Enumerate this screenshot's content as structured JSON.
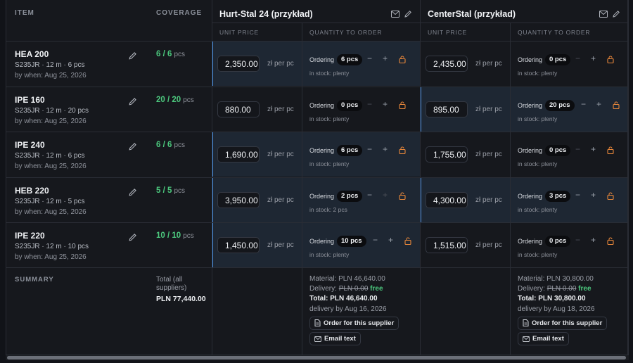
{
  "header": {
    "item": "ITEM",
    "coverage": "COVERAGE",
    "summary": "SUMMARY"
  },
  "suppliers": [
    {
      "name": "Hurt-Stal 24 (przykład)",
      "unit_price_header": "UNIT PRICE",
      "qty_header": "QUANTITY TO ORDER",
      "rows": [
        {
          "price": "2,350.00",
          "unit": "zł per pc",
          "ordering": "Ordering",
          "qty": "6 pcs",
          "stock": "in stock: plenty",
          "highlight": true
        },
        {
          "price": "880.00",
          "unit": "zł per pc",
          "ordering": "Ordering",
          "qty": "0 pcs",
          "stock": "in stock: plenty",
          "highlight": false
        },
        {
          "price": "1,690.00",
          "unit": "zł per pc",
          "ordering": "Ordering",
          "qty": "6 pcs",
          "stock": "in stock: plenty",
          "highlight": true
        },
        {
          "price": "3,950.00",
          "unit": "zł per pc",
          "ordering": "Ordering",
          "qty": "2 pcs",
          "stock": "in stock: 2 pcs",
          "highlight": true
        },
        {
          "price": "1,450.00",
          "unit": "zł per pc",
          "ordering": "Ordering",
          "qty": "10 pcs",
          "stock": "in stock: plenty",
          "highlight": true
        }
      ],
      "summary": {
        "material": "Material: PLN 46,640.00",
        "delivery_label": "Delivery:",
        "delivery_old": "PLN 0.00",
        "delivery_free": "free",
        "total": "Total: PLN 46,640.00",
        "delivery_by": "delivery by Aug 16, 2026",
        "order_btn": "Order for this supplier",
        "email_btn": "Email text"
      }
    },
    {
      "name": "CenterStal (przykład)",
      "unit_price_header": "UNIT PRICE",
      "qty_header": "QUANTITY TO ORDER",
      "rows": [
        {
          "price": "2,435.00",
          "unit": "zł per pc",
          "ordering": "Ordering",
          "qty": "0 pcs",
          "stock": "in stock: plenty",
          "highlight": false
        },
        {
          "price": "895.00",
          "unit": "zł per pc",
          "ordering": "Ordering",
          "qty": "20 pcs",
          "stock": "in stock: plenty",
          "highlight": true
        },
        {
          "price": "1,755.00",
          "unit": "zł per pc",
          "ordering": "Ordering",
          "qty": "0 pcs",
          "stock": "in stock: plenty",
          "highlight": false
        },
        {
          "price": "4,300.00",
          "unit": "zł per pc",
          "ordering": "Ordering",
          "qty": "3 pcs",
          "stock": "in stock: plenty",
          "highlight": true
        },
        {
          "price": "1,515.00",
          "unit": "zł per pc",
          "ordering": "Ordering",
          "qty": "0 pcs",
          "stock": "in stock: plenty",
          "highlight": false
        }
      ],
      "summary": {
        "material": "Material: PLN 30,800.00",
        "delivery_label": "Delivery:",
        "delivery_old": "PLN 0.00",
        "delivery_free": "free",
        "total": "Total: PLN 30,800.00",
        "delivery_by": "delivery by Aug 18, 2026",
        "order_btn": "Order for this supplier",
        "email_btn": "Email text"
      }
    }
  ],
  "items": [
    {
      "name": "HEA 200",
      "spec": "S235JR · 12 m · 6 pcs",
      "when": "by when: Aug 25, 2026",
      "coverage": "6 / 6",
      "pcs": "pcs"
    },
    {
      "name": "IPE 160",
      "spec": "S235JR · 12 m · 20 pcs",
      "when": "by when: Aug 25, 2026",
      "coverage": "20 / 20",
      "pcs": "pcs"
    },
    {
      "name": "IPE 240",
      "spec": "S235JR · 12 m · 6 pcs",
      "when": "by when: Aug 25, 2026",
      "coverage": "6 / 6",
      "pcs": "pcs"
    },
    {
      "name": "HEB 220",
      "spec": "S235JR · 12 m · 5 pcs",
      "when": "by when: Aug 25, 2026",
      "coverage": "5 / 5",
      "pcs": "pcs"
    },
    {
      "name": "IPE 220",
      "spec": "S235JR · 12 m · 10 pcs",
      "when": "by when: Aug 25, 2026",
      "coverage": "10 / 10",
      "pcs": "pcs"
    }
  ],
  "summary": {
    "total_label_1": "Total (all",
    "total_label_2": "suppliers)",
    "total_value": "PLN 77,440.00"
  },
  "icons": {
    "edit": "pencil-icon",
    "email": "envelope-icon",
    "lock": "lock-icon",
    "document": "document-icon"
  },
  "colors": {
    "accent_green": "#4cc97e",
    "accent_blue": "#4a90e2",
    "lock_orange": "#e8873a",
    "highlight_bg": "#1e2733"
  }
}
